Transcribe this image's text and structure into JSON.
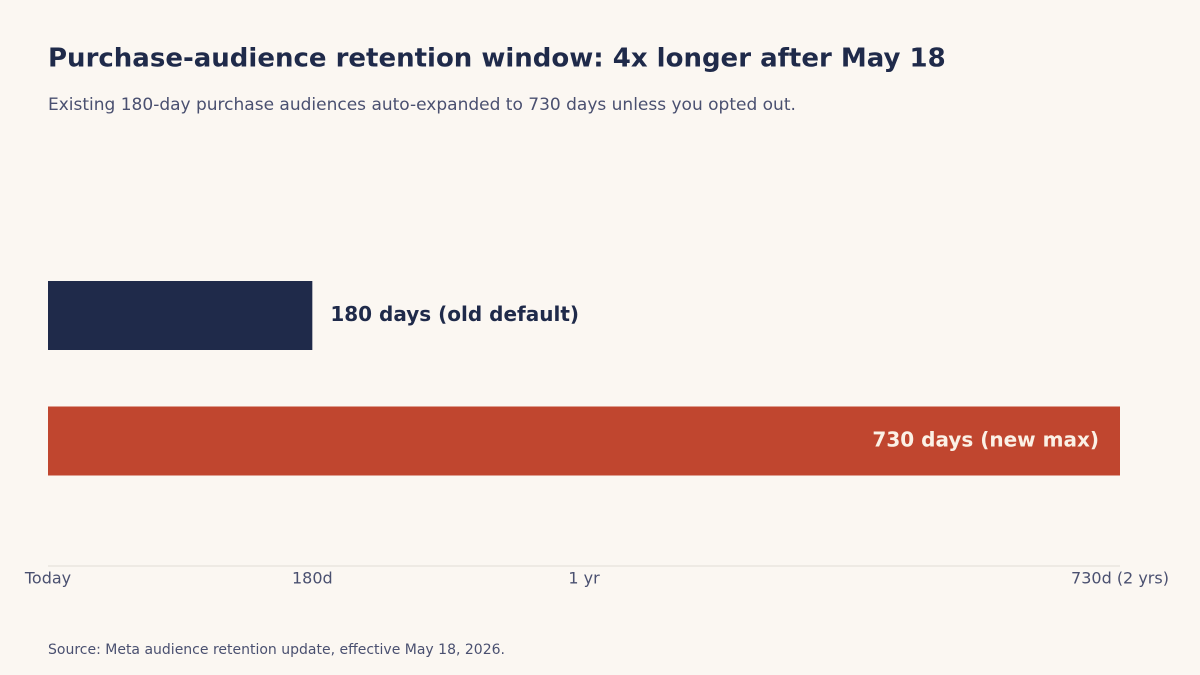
{
  "chart_data": {
    "type": "hbar",
    "title": "Purchase-audience retention window: 4x longer after May 18",
    "subtitle": "Existing 180-day purchase audiences auto-expanded to 730 days unless you opted out.",
    "source": "Source: Meta audience retention update, effective May 18, 2026.",
    "categories": [
      null,
      null
    ],
    "values": [
      180,
      730
    ],
    "value_labels": [
      "180 days  (old default)",
      "730 days  (new max)"
    ],
    "colors": [
      "#1f2a4a",
      "#c0462f"
    ],
    "xlim": [
      0,
      730
    ],
    "xticks": [
      {
        "value": 0,
        "label": "Today"
      },
      {
        "value": 180,
        "label": "180d"
      },
      {
        "value": 365,
        "label": "1 yr"
      },
      {
        "value": 730,
        "label": "730d (2 yrs)"
      }
    ],
    "grid": false
  }
}
